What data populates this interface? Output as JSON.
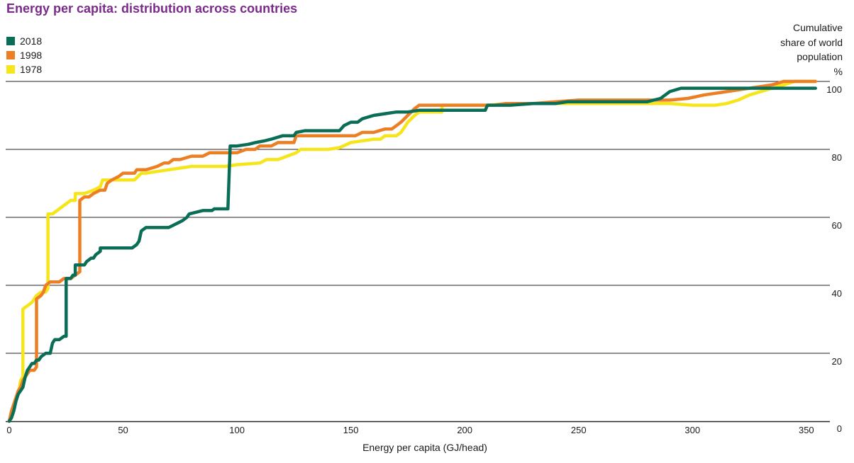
{
  "chart_data": {
    "type": "line",
    "title": "Energy per capita: distribution across countries",
    "xlabel": "Energy per capita (GJ/head)",
    "ylabel_lines": [
      "Cumulative",
      "share of world",
      "population",
      "%"
    ],
    "xlim": [
      0,
      365
    ],
    "ylim": [
      0,
      100
    ],
    "x_ticks": [
      0,
      50,
      100,
      150,
      200,
      250,
      300,
      350
    ],
    "y_ticks": [
      0,
      20,
      40,
      60,
      80,
      100
    ],
    "grid": "horizontal",
    "legend_position": "top-left",
    "series": [
      {
        "name": "2018",
        "color": "#0a6e56",
        "points": [
          [
            0,
            0
          ],
          [
            1,
            1
          ],
          [
            2,
            3
          ],
          [
            3,
            6
          ],
          [
            4,
            8
          ],
          [
            5,
            9
          ],
          [
            6,
            10
          ],
          [
            7,
            13
          ],
          [
            8,
            15
          ],
          [
            9,
            16
          ],
          [
            10,
            17
          ],
          [
            11,
            17
          ],
          [
            12,
            18
          ],
          [
            13,
            18
          ],
          [
            14,
            19
          ],
          [
            16,
            20
          ],
          [
            18,
            20
          ],
          [
            19,
            23
          ],
          [
            20,
            24
          ],
          [
            22,
            24
          ],
          [
            24,
            25
          ],
          [
            25,
            25
          ],
          [
            25,
            42
          ],
          [
            27,
            42
          ],
          [
            28,
            43
          ],
          [
            29,
            43
          ],
          [
            29,
            46
          ],
          [
            33,
            46
          ],
          [
            34,
            47
          ],
          [
            36,
            48
          ],
          [
            37,
            48
          ],
          [
            38,
            49
          ],
          [
            40,
            50
          ],
          [
            40,
            51
          ],
          [
            45,
            51
          ],
          [
            50,
            51
          ],
          [
            54,
            51
          ],
          [
            56,
            52
          ],
          [
            57,
            53
          ],
          [
            58,
            56
          ],
          [
            60,
            57
          ],
          [
            65,
            57
          ],
          [
            70,
            57
          ],
          [
            73,
            58
          ],
          [
            76,
            59
          ],
          [
            78,
            60
          ],
          [
            79,
            61
          ],
          [
            85,
            62
          ],
          [
            89,
            62
          ],
          [
            90,
            62.5
          ],
          [
            96,
            62.5
          ],
          [
            97,
            81
          ],
          [
            100,
            81
          ],
          [
            105,
            81.5
          ],
          [
            108,
            82
          ],
          [
            112,
            82.5
          ],
          [
            115,
            83
          ],
          [
            120,
            84
          ],
          [
            125,
            84
          ],
          [
            126,
            85
          ],
          [
            130,
            85.5
          ],
          [
            145,
            85.5
          ],
          [
            147,
            87
          ],
          [
            150,
            88
          ],
          [
            153,
            88
          ],
          [
            155,
            89
          ],
          [
            160,
            90
          ],
          [
            165,
            90.5
          ],
          [
            170,
            91
          ],
          [
            175,
            91
          ],
          [
            180,
            91.5
          ],
          [
            190,
            91.5
          ],
          [
            200,
            91.5
          ],
          [
            209,
            91.5
          ],
          [
            210,
            93
          ],
          [
            220,
            93
          ],
          [
            230,
            93.5
          ],
          [
            240,
            93.5
          ],
          [
            245,
            94
          ],
          [
            260,
            94
          ],
          [
            270,
            94
          ],
          [
            280,
            94
          ],
          [
            286,
            95
          ],
          [
            290,
            97
          ],
          [
            295,
            98
          ],
          [
            305,
            98
          ],
          [
            315,
            98
          ],
          [
            330,
            98
          ],
          [
            354,
            98
          ]
        ]
      },
      {
        "name": "1998",
        "color": "#ec7f24",
        "points": [
          [
            0,
            0
          ],
          [
            1,
            3
          ],
          [
            2,
            5
          ],
          [
            3,
            7
          ],
          [
            4,
            9
          ],
          [
            5,
            10
          ],
          [
            6,
            12
          ],
          [
            7,
            13
          ],
          [
            8,
            14
          ],
          [
            9,
            15
          ],
          [
            11,
            15
          ],
          [
            12,
            16
          ],
          [
            12,
            36
          ],
          [
            14,
            37
          ],
          [
            15,
            38
          ],
          [
            16,
            40
          ],
          [
            18,
            41
          ],
          [
            20,
            41
          ],
          [
            22,
            41
          ],
          [
            24,
            42
          ],
          [
            27,
            42
          ],
          [
            29,
            43
          ],
          [
            31,
            44
          ],
          [
            31,
            65
          ],
          [
            33,
            66
          ],
          [
            35,
            66
          ],
          [
            37,
            67
          ],
          [
            40,
            68
          ],
          [
            42,
            68
          ],
          [
            43,
            70
          ],
          [
            45,
            71
          ],
          [
            48,
            72
          ],
          [
            50,
            73
          ],
          [
            55,
            73
          ],
          [
            56,
            74
          ],
          [
            60,
            74
          ],
          [
            65,
            75
          ],
          [
            68,
            76
          ],
          [
            70,
            76
          ],
          [
            72,
            77
          ],
          [
            75,
            77
          ],
          [
            80,
            78
          ],
          [
            85,
            78
          ],
          [
            88,
            79
          ],
          [
            95,
            79
          ],
          [
            100,
            79
          ],
          [
            104,
            80
          ],
          [
            108,
            80
          ],
          [
            110,
            81
          ],
          [
            115,
            81
          ],
          [
            118,
            82
          ],
          [
            125,
            82
          ],
          [
            126,
            84
          ],
          [
            130,
            84
          ],
          [
            150,
            84
          ],
          [
            152,
            84
          ],
          [
            155,
            85
          ],
          [
            160,
            85
          ],
          [
            165,
            86
          ],
          [
            168,
            86
          ],
          [
            170,
            87
          ],
          [
            172,
            88
          ],
          [
            175,
            90
          ],
          [
            178,
            92
          ],
          [
            180,
            93
          ],
          [
            190,
            93
          ],
          [
            200,
            93
          ],
          [
            210,
            93
          ],
          [
            213,
            93
          ],
          [
            218,
            93.5
          ],
          [
            230,
            93.5
          ],
          [
            240,
            94
          ],
          [
            250,
            94.5
          ],
          [
            260,
            94.5
          ],
          [
            270,
            94.5
          ],
          [
            280,
            94.5
          ],
          [
            290,
            94.5
          ],
          [
            298,
            95
          ],
          [
            305,
            96
          ],
          [
            315,
            97
          ],
          [
            325,
            98
          ],
          [
            335,
            99
          ],
          [
            340,
            100
          ],
          [
            354,
            100
          ]
        ]
      },
      {
        "name": "1978",
        "color": "#f6e51b",
        "points": [
          [
            0,
            0
          ],
          [
            1,
            2
          ],
          [
            2,
            4
          ],
          [
            3,
            6
          ],
          [
            4,
            8
          ],
          [
            5,
            12
          ],
          [
            6,
            13
          ],
          [
            6,
            33
          ],
          [
            8,
            34
          ],
          [
            10,
            35
          ],
          [
            11,
            36
          ],
          [
            12,
            37
          ],
          [
            14,
            38
          ],
          [
            16,
            38
          ],
          [
            17,
            39
          ],
          [
            17,
            61
          ],
          [
            19,
            61
          ],
          [
            21,
            62
          ],
          [
            23,
            63
          ],
          [
            25,
            64
          ],
          [
            27,
            65
          ],
          [
            29,
            65
          ],
          [
            29,
            67
          ],
          [
            33,
            67
          ],
          [
            37,
            68
          ],
          [
            40,
            69
          ],
          [
            41,
            71
          ],
          [
            45,
            71
          ],
          [
            50,
            71
          ],
          [
            55,
            71
          ],
          [
            58,
            73
          ],
          [
            60,
            73
          ],
          [
            65,
            73.5
          ],
          [
            70,
            74
          ],
          [
            75,
            74.5
          ],
          [
            80,
            75
          ],
          [
            85,
            75
          ],
          [
            90,
            75
          ],
          [
            95,
            75
          ],
          [
            100,
            75.5
          ],
          [
            110,
            76
          ],
          [
            113,
            77
          ],
          [
            118,
            77
          ],
          [
            122,
            78
          ],
          [
            126,
            79
          ],
          [
            128,
            80
          ],
          [
            130,
            80
          ],
          [
            140,
            80
          ],
          [
            145,
            80.5
          ],
          [
            150,
            82
          ],
          [
            155,
            82.5
          ],
          [
            160,
            83
          ],
          [
            163,
            83
          ],
          [
            165,
            84
          ],
          [
            170,
            84
          ],
          [
            172,
            85
          ],
          [
            173,
            86
          ],
          [
            175,
            88
          ],
          [
            178,
            90
          ],
          [
            180,
            91
          ],
          [
            185,
            91
          ],
          [
            190,
            91
          ],
          [
            190,
            93
          ],
          [
            200,
            93
          ],
          [
            210,
            93
          ],
          [
            220,
            93.5
          ],
          [
            230,
            93.5
          ],
          [
            240,
            93.5
          ],
          [
            250,
            93.5
          ],
          [
            260,
            93.5
          ],
          [
            270,
            93.5
          ],
          [
            280,
            93.5
          ],
          [
            290,
            93.5
          ],
          [
            300,
            93
          ],
          [
            310,
            93
          ],
          [
            315,
            93.5
          ],
          [
            320,
            94.5
          ],
          [
            325,
            96
          ],
          [
            330,
            97
          ],
          [
            335,
            98
          ],
          [
            340,
            99
          ],
          [
            345,
            100
          ],
          [
            354,
            100
          ]
        ]
      }
    ]
  }
}
